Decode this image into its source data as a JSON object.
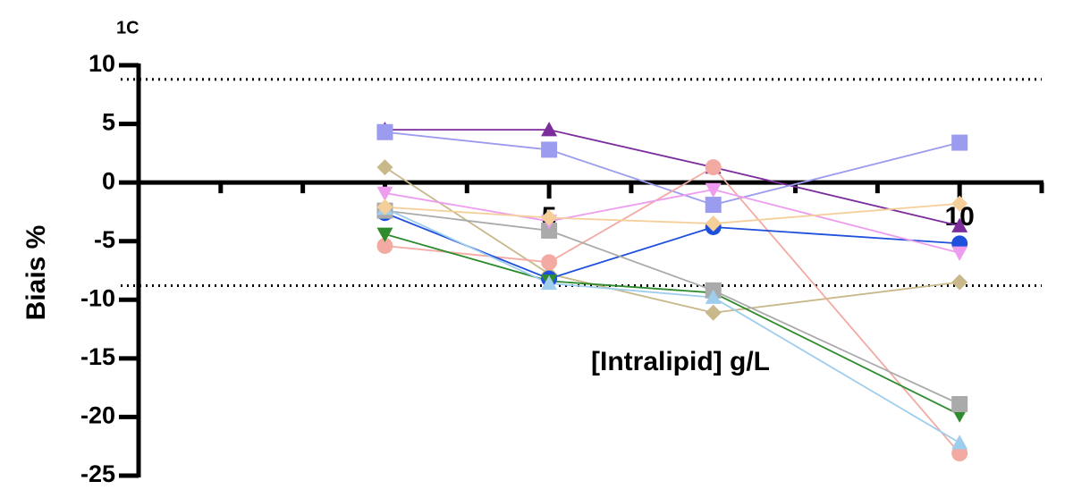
{
  "chart_data": {
    "type": "line",
    "panel_label": "1C",
    "x_label": "[Intralipid] g/L",
    "y_label": "Biais %",
    "x": [
      3,
      5,
      7,
      10
    ],
    "xlim": [
      0,
      11
    ],
    "xticks": [
      5,
      10
    ],
    "xminorticks": [
      1,
      2,
      3,
      4,
      6,
      7,
      8,
      9,
      11
    ],
    "ylim": [
      -25,
      10
    ],
    "yticks": [
      10,
      5,
      0,
      -5,
      -10,
      -15,
      -20,
      -25
    ],
    "reference_lines": [
      8.8,
      -8.8
    ],
    "series": [
      {
        "color": "#7b2d9b",
        "marker": "triangle",
        "values": [
          4.5,
          4.5,
          1.3,
          -3.7
        ]
      },
      {
        "color": "#9b9bf0",
        "marker": "square",
        "values": [
          4.3,
          2.8,
          -1.9,
          3.4
        ]
      },
      {
        "color": "#c8b88a",
        "marker": "diamond",
        "values": [
          1.3,
          -7.8,
          -11.1,
          -8.5
        ]
      },
      {
        "color": "#f2aaa2",
        "marker": "circle",
        "values": [
          -5.4,
          -6.8,
          1.3,
          -23.1
        ]
      },
      {
        "color": "#1f4fdd",
        "marker": "circle",
        "values": [
          -2.6,
          -8.2,
          -3.8,
          -5.2
        ]
      },
      {
        "color": "#2e8b2e",
        "marker": "triangle-down",
        "values": [
          -4.4,
          -8.4,
          -9.4,
          -19.8
        ]
      },
      {
        "color": "#aaaaaa",
        "marker": "square",
        "values": [
          -2.4,
          -4.1,
          -9.2,
          -18.9
        ]
      },
      {
        "color": "#9fcdee",
        "marker": "triangle",
        "values": [
          -2.2,
          -8.6,
          -9.8,
          -22.2
        ]
      },
      {
        "color": "#ee9cee",
        "marker": "triangle-down",
        "values": [
          -0.9,
          -3.3,
          -0.6,
          -6.0
        ]
      },
      {
        "color": "#f5cf9a",
        "marker": "diamond",
        "values": [
          -2.1,
          -3.0,
          -3.5,
          -1.8
        ]
      }
    ]
  }
}
